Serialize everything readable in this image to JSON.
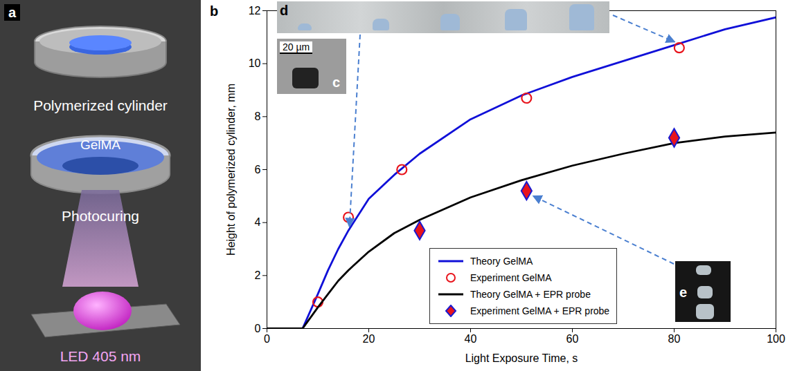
{
  "diagram": {
    "panel": "a",
    "labels": [
      "Polymerized cylinder",
      "GelMA",
      "Photocuring",
      "LED 405 nm"
    ]
  },
  "chart_data": {
    "type": "line",
    "panel": "b",
    "x_label": "Light Exposure Time, s",
    "y_label": "Height of polymerized cylinder, mm",
    "xlim": [
      0,
      100
    ],
    "xticks": [
      0,
      20,
      40,
      60,
      80,
      100
    ],
    "ylim": [
      0,
      12
    ],
    "yticks": [
      0,
      2,
      4,
      6,
      8,
      10,
      12
    ],
    "grid": false,
    "legend": "bottom",
    "insets": [
      {
        "label": "d"
      },
      {
        "label": "c",
        "scale_bar": "20 µm"
      },
      {
        "label": "e"
      }
    ],
    "series": [
      {
        "name": "Theory GelMA",
        "type": "line",
        "line_style": "solid",
        "color": "#1010d8",
        "x": [
          0,
          7,
          10,
          12,
          14,
          16,
          20,
          25,
          30,
          40,
          50,
          60,
          70,
          80,
          90,
          100
        ],
        "values": [
          0,
          0,
          1.3,
          2.2,
          3.0,
          3.7,
          4.9,
          5.8,
          6.6,
          7.9,
          8.8,
          9.5,
          10.1,
          10.7,
          11.3,
          11.75
        ]
      },
      {
        "name": "Experiment GelMA",
        "type": "scatter",
        "marker": "circle",
        "color": "#e8141c",
        "x": [
          10,
          16,
          26.5,
          51,
          81
        ],
        "values": [
          1.0,
          4.2,
          6.0,
          8.7,
          10.6
        ]
      },
      {
        "name": "Theory GelMA + EPR probe",
        "type": "line",
        "line_style": "solid",
        "color": "#000000",
        "x": [
          0,
          7,
          10,
          12,
          14,
          16,
          20,
          25,
          30,
          40,
          50,
          60,
          70,
          80,
          90,
          100
        ],
        "values": [
          0,
          0,
          0.8,
          1.3,
          1.8,
          2.2,
          2.9,
          3.6,
          4.1,
          4.95,
          5.6,
          6.15,
          6.6,
          7.0,
          7.25,
          7.4
        ]
      },
      {
        "name": "Experiment GelMA + EPR probe",
        "type": "scatter",
        "marker": "diamond",
        "color": "#1a1ad0",
        "x": [
          30,
          51,
          80
        ],
        "values": [
          3.7,
          5.2,
          7.2
        ]
      }
    ]
  }
}
